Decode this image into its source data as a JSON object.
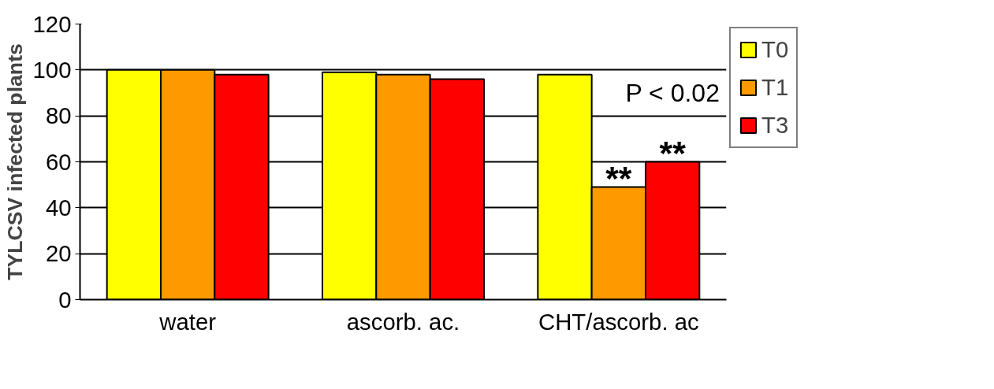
{
  "chart_data": {
    "type": "bar",
    "ylabel": "TYLCSV infected plants",
    "categories": [
      "water",
      "ascorb. ac.",
      "CHT/ascorb. ac"
    ],
    "series": [
      {
        "name": "T0",
        "color": "#ffff00",
        "values": [
          100,
          99,
          98
        ]
      },
      {
        "name": "T1",
        "color": "#ff9900",
        "values": [
          100,
          98,
          49
        ]
      },
      {
        "name": "T3",
        "color": "#ff0000",
        "values": [
          98,
          96,
          60
        ]
      }
    ],
    "ylim": [
      0,
      120
    ],
    "yticks": [
      0,
      20,
      40,
      60,
      80,
      100,
      120
    ],
    "grid": "y",
    "legend": "right",
    "annotations": [
      "P < 0.02",
      "**",
      "**"
    ]
  }
}
